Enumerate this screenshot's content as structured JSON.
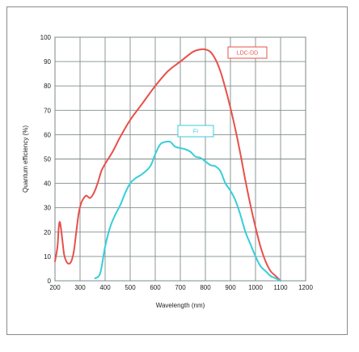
{
  "chart_data": {
    "type": "line",
    "xlabel": "Wavelength (nm)",
    "ylabel": "Quantum efficiency (%)",
    "xlim": [
      200,
      1200
    ],
    "ylim": [
      0,
      100
    ],
    "x_ticks": [
      "200",
      "300",
      "400",
      "500",
      "600",
      "700",
      "800",
      "900",
      "1000",
      "1100",
      "1200"
    ],
    "y_ticks": [
      "0",
      "10",
      "20",
      "30",
      "40",
      "50",
      "60",
      "70",
      "80",
      "90",
      "100"
    ],
    "grid": true,
    "legend_position": "labels-on-curves",
    "series": [
      {
        "name": "LDC-DD",
        "color": "#e8504a",
        "points": [
          [
            200,
            8
          ],
          [
            210,
            14
          ],
          [
            215,
            22
          ],
          [
            220,
            24
          ],
          [
            228,
            18
          ],
          [
            236,
            11
          ],
          [
            245,
            8
          ],
          [
            255,
            7
          ],
          [
            265,
            8
          ],
          [
            275,
            12
          ],
          [
            285,
            20
          ],
          [
            295,
            28
          ],
          [
            305,
            32
          ],
          [
            315,
            34
          ],
          [
            325,
            35
          ],
          [
            340,
            34
          ],
          [
            355,
            36
          ],
          [
            370,
            40
          ],
          [
            385,
            45
          ],
          [
            400,
            48
          ],
          [
            430,
            53
          ],
          [
            460,
            59
          ],
          [
            500,
            66
          ],
          [
            550,
            73
          ],
          [
            600,
            80
          ],
          [
            650,
            86
          ],
          [
            700,
            90
          ],
          [
            750,
            94
          ],
          [
            780,
            95
          ],
          [
            800,
            95
          ],
          [
            820,
            94
          ],
          [
            840,
            91
          ],
          [
            860,
            86
          ],
          [
            880,
            79
          ],
          [
            900,
            71
          ],
          [
            920,
            62
          ],
          [
            940,
            52
          ],
          [
            960,
            41
          ],
          [
            980,
            31
          ],
          [
            1000,
            22
          ],
          [
            1020,
            14
          ],
          [
            1040,
            8
          ],
          [
            1060,
            4
          ],
          [
            1080,
            2
          ],
          [
            1100,
            0
          ]
        ]
      },
      {
        "name": "FI",
        "color": "#35cfd8",
        "points": [
          [
            360,
            1
          ],
          [
            375,
            2
          ],
          [
            385,
            5
          ],
          [
            400,
            14
          ],
          [
            420,
            22
          ],
          [
            440,
            27
          ],
          [
            460,
            31
          ],
          [
            480,
            36
          ],
          [
            500,
            40
          ],
          [
            520,
            42
          ],
          [
            550,
            44
          ],
          [
            580,
            47
          ],
          [
            600,
            52
          ],
          [
            620,
            56
          ],
          [
            640,
            57
          ],
          [
            660,
            57
          ],
          [
            680,
            55
          ],
          [
            700,
            54.5
          ],
          [
            720,
            54
          ],
          [
            740,
            53
          ],
          [
            760,
            51
          ],
          [
            780,
            50.5
          ],
          [
            800,
            49
          ],
          [
            820,
            47.5
          ],
          [
            840,
            47
          ],
          [
            860,
            45
          ],
          [
            880,
            40
          ],
          [
            900,
            37
          ],
          [
            920,
            33
          ],
          [
            940,
            27
          ],
          [
            960,
            20
          ],
          [
            980,
            15
          ],
          [
            1000,
            10
          ],
          [
            1020,
            6
          ],
          [
            1040,
            4
          ],
          [
            1060,
            2
          ],
          [
            1080,
            1
          ],
          [
            1100,
            0
          ]
        ]
      }
    ]
  }
}
